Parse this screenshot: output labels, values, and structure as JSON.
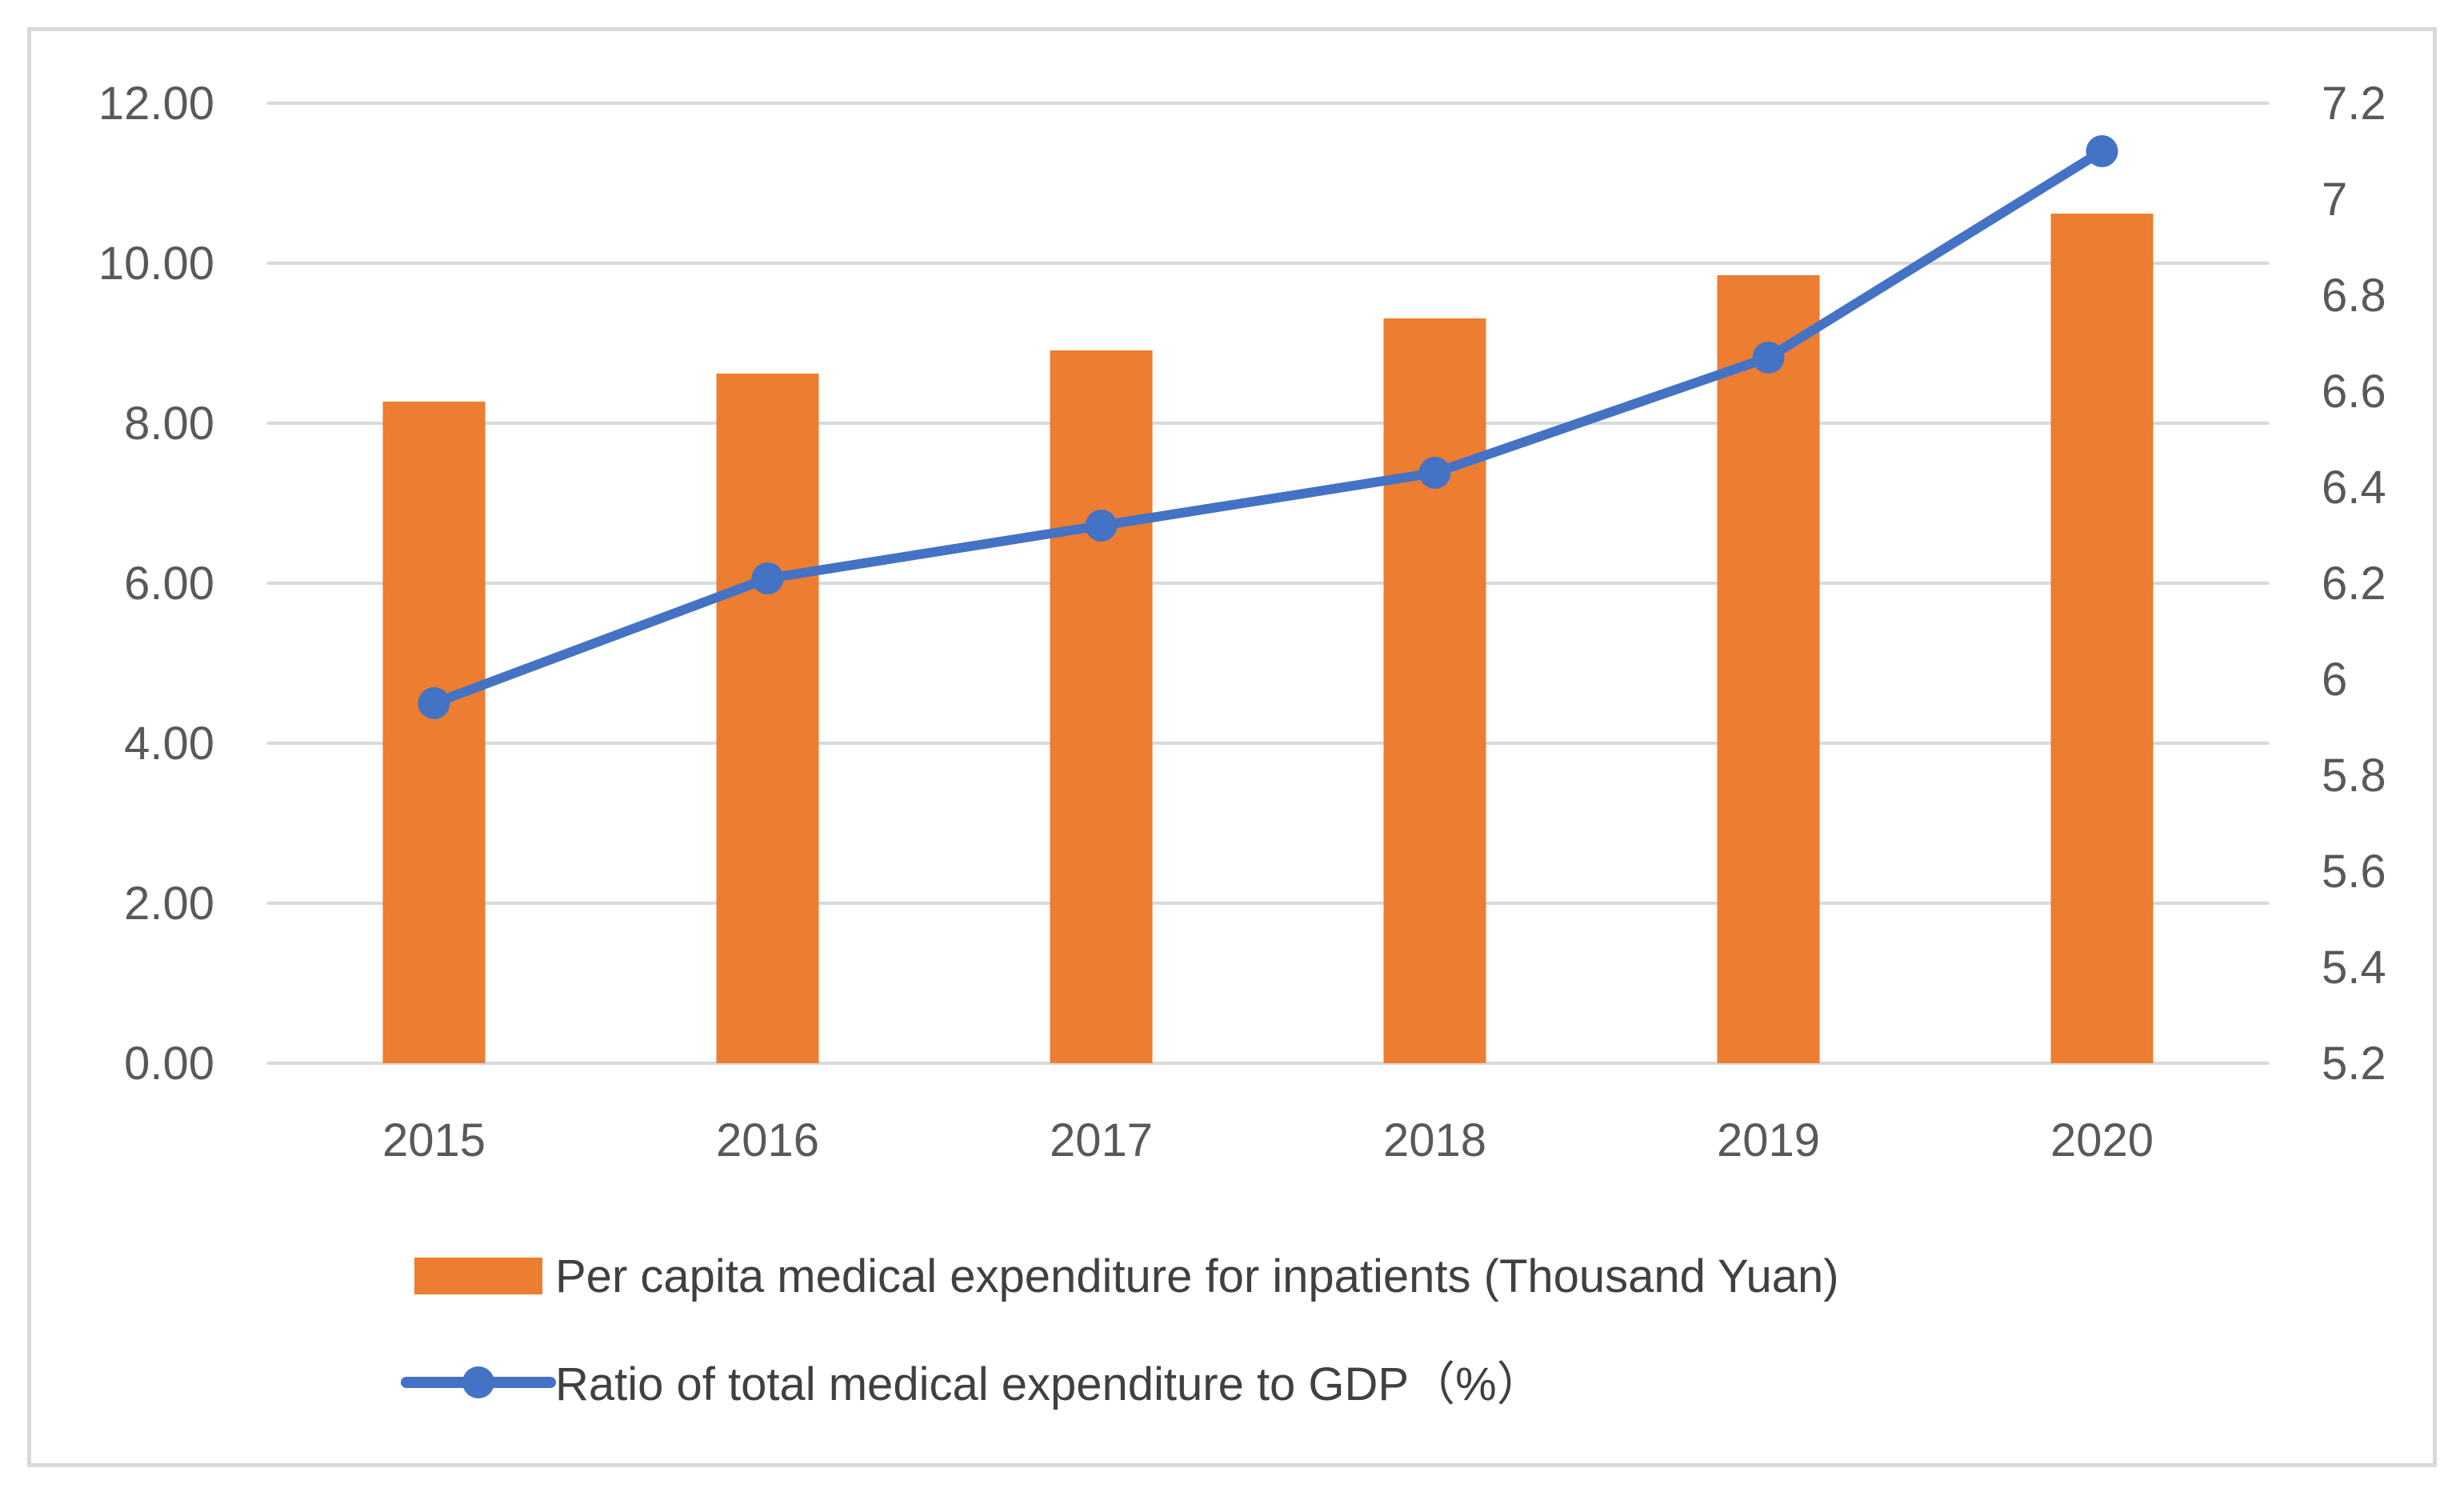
{
  "chart_data": {
    "type": "bar",
    "categories": [
      "2015",
      "2016",
      "2017",
      "2018",
      "2019",
      "2020"
    ],
    "series": [
      {
        "name": "Per capita medical expenditure for inpatients (Thousand Yuan)",
        "type": "bar",
        "axis": "left",
        "color": "#ed7d31",
        "values": [
          8.27,
          8.62,
          8.91,
          9.31,
          9.85,
          10.62
        ]
      },
      {
        "name": "Ratio of total medical expenditure to GDP（%）",
        "type": "line",
        "axis": "right",
        "color": "#4472c4",
        "values": [
          5.95,
          6.21,
          6.32,
          6.43,
          6.67,
          7.1
        ]
      }
    ],
    "y_left": {
      "ylim": [
        0,
        12
      ],
      "ticks": [
        "0.00",
        "2.00",
        "4.00",
        "6.00",
        "8.00",
        "10.00",
        "12.00"
      ]
    },
    "y_right": {
      "ylim": [
        5.2,
        7.2
      ],
      "ticks": [
        "5.2",
        "5.4",
        "5.6",
        "5.8",
        "6",
        "6.2",
        "6.4",
        "6.6",
        "6.8",
        "7",
        "7.2"
      ]
    },
    "grid": true,
    "legend": "bottom"
  }
}
